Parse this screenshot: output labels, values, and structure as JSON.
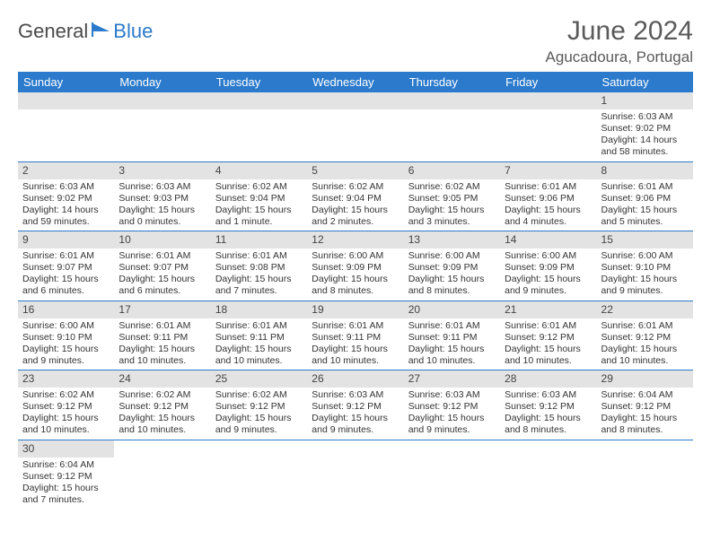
{
  "brand": {
    "part1": "General",
    "part2": "Blue"
  },
  "title": {
    "month": "June 2024",
    "location": "Agucadoura, Portugal"
  },
  "colors": {
    "header_bg": "#2b7acb",
    "header_text": "#ffffff",
    "daynum_bg": "#e3e3e3",
    "row_border": "#2b7acb",
    "text": "#333333"
  },
  "dayHeaders": [
    "Sunday",
    "Monday",
    "Tuesday",
    "Wednesday",
    "Thursday",
    "Friday",
    "Saturday"
  ],
  "weeks": [
    [
      {
        "blank": true
      },
      {
        "blank": true
      },
      {
        "blank": true
      },
      {
        "blank": true
      },
      {
        "blank": true
      },
      {
        "blank": true
      },
      {
        "n": "1",
        "sunrise": "Sunrise: 6:03 AM",
        "sunset": "Sunset: 9:02 PM",
        "daylight": "Daylight: 14 hours and 58 minutes."
      }
    ],
    [
      {
        "n": "2",
        "sunrise": "Sunrise: 6:03 AM",
        "sunset": "Sunset: 9:02 PM",
        "daylight": "Daylight: 14 hours and 59 minutes."
      },
      {
        "n": "3",
        "sunrise": "Sunrise: 6:03 AM",
        "sunset": "Sunset: 9:03 PM",
        "daylight": "Daylight: 15 hours and 0 minutes."
      },
      {
        "n": "4",
        "sunrise": "Sunrise: 6:02 AM",
        "sunset": "Sunset: 9:04 PM",
        "daylight": "Daylight: 15 hours and 1 minute."
      },
      {
        "n": "5",
        "sunrise": "Sunrise: 6:02 AM",
        "sunset": "Sunset: 9:04 PM",
        "daylight": "Daylight: 15 hours and 2 minutes."
      },
      {
        "n": "6",
        "sunrise": "Sunrise: 6:02 AM",
        "sunset": "Sunset: 9:05 PM",
        "daylight": "Daylight: 15 hours and 3 minutes."
      },
      {
        "n": "7",
        "sunrise": "Sunrise: 6:01 AM",
        "sunset": "Sunset: 9:06 PM",
        "daylight": "Daylight: 15 hours and 4 minutes."
      },
      {
        "n": "8",
        "sunrise": "Sunrise: 6:01 AM",
        "sunset": "Sunset: 9:06 PM",
        "daylight": "Daylight: 15 hours and 5 minutes."
      }
    ],
    [
      {
        "n": "9",
        "sunrise": "Sunrise: 6:01 AM",
        "sunset": "Sunset: 9:07 PM",
        "daylight": "Daylight: 15 hours and 6 minutes."
      },
      {
        "n": "10",
        "sunrise": "Sunrise: 6:01 AM",
        "sunset": "Sunset: 9:07 PM",
        "daylight": "Daylight: 15 hours and 6 minutes."
      },
      {
        "n": "11",
        "sunrise": "Sunrise: 6:01 AM",
        "sunset": "Sunset: 9:08 PM",
        "daylight": "Daylight: 15 hours and 7 minutes."
      },
      {
        "n": "12",
        "sunrise": "Sunrise: 6:00 AM",
        "sunset": "Sunset: 9:09 PM",
        "daylight": "Daylight: 15 hours and 8 minutes."
      },
      {
        "n": "13",
        "sunrise": "Sunrise: 6:00 AM",
        "sunset": "Sunset: 9:09 PM",
        "daylight": "Daylight: 15 hours and 8 minutes."
      },
      {
        "n": "14",
        "sunrise": "Sunrise: 6:00 AM",
        "sunset": "Sunset: 9:09 PM",
        "daylight": "Daylight: 15 hours and 9 minutes."
      },
      {
        "n": "15",
        "sunrise": "Sunrise: 6:00 AM",
        "sunset": "Sunset: 9:10 PM",
        "daylight": "Daylight: 15 hours and 9 minutes."
      }
    ],
    [
      {
        "n": "16",
        "sunrise": "Sunrise: 6:00 AM",
        "sunset": "Sunset: 9:10 PM",
        "daylight": "Daylight: 15 hours and 9 minutes."
      },
      {
        "n": "17",
        "sunrise": "Sunrise: 6:01 AM",
        "sunset": "Sunset: 9:11 PM",
        "daylight": "Daylight: 15 hours and 10 minutes."
      },
      {
        "n": "18",
        "sunrise": "Sunrise: 6:01 AM",
        "sunset": "Sunset: 9:11 PM",
        "daylight": "Daylight: 15 hours and 10 minutes."
      },
      {
        "n": "19",
        "sunrise": "Sunrise: 6:01 AM",
        "sunset": "Sunset: 9:11 PM",
        "daylight": "Daylight: 15 hours and 10 minutes."
      },
      {
        "n": "20",
        "sunrise": "Sunrise: 6:01 AM",
        "sunset": "Sunset: 9:11 PM",
        "daylight": "Daylight: 15 hours and 10 minutes."
      },
      {
        "n": "21",
        "sunrise": "Sunrise: 6:01 AM",
        "sunset": "Sunset: 9:12 PM",
        "daylight": "Daylight: 15 hours and 10 minutes."
      },
      {
        "n": "22",
        "sunrise": "Sunrise: 6:01 AM",
        "sunset": "Sunset: 9:12 PM",
        "daylight": "Daylight: 15 hours and 10 minutes."
      }
    ],
    [
      {
        "n": "23",
        "sunrise": "Sunrise: 6:02 AM",
        "sunset": "Sunset: 9:12 PM",
        "daylight": "Daylight: 15 hours and 10 minutes."
      },
      {
        "n": "24",
        "sunrise": "Sunrise: 6:02 AM",
        "sunset": "Sunset: 9:12 PM",
        "daylight": "Daylight: 15 hours and 10 minutes."
      },
      {
        "n": "25",
        "sunrise": "Sunrise: 6:02 AM",
        "sunset": "Sunset: 9:12 PM",
        "daylight": "Daylight: 15 hours and 9 minutes."
      },
      {
        "n": "26",
        "sunrise": "Sunrise: 6:03 AM",
        "sunset": "Sunset: 9:12 PM",
        "daylight": "Daylight: 15 hours and 9 minutes."
      },
      {
        "n": "27",
        "sunrise": "Sunrise: 6:03 AM",
        "sunset": "Sunset: 9:12 PM",
        "daylight": "Daylight: 15 hours and 9 minutes."
      },
      {
        "n": "28",
        "sunrise": "Sunrise: 6:03 AM",
        "sunset": "Sunset: 9:12 PM",
        "daylight": "Daylight: 15 hours and 8 minutes."
      },
      {
        "n": "29",
        "sunrise": "Sunrise: 6:04 AM",
        "sunset": "Sunset: 9:12 PM",
        "daylight": "Daylight: 15 hours and 8 minutes."
      }
    ],
    [
      {
        "n": "30",
        "sunrise": "Sunrise: 6:04 AM",
        "sunset": "Sunset: 9:12 PM",
        "daylight": "Daylight: 15 hours and 7 minutes."
      },
      {
        "blank": true
      },
      {
        "blank": true
      },
      {
        "blank": true
      },
      {
        "blank": true
      },
      {
        "blank": true
      },
      {
        "blank": true
      }
    ]
  ]
}
